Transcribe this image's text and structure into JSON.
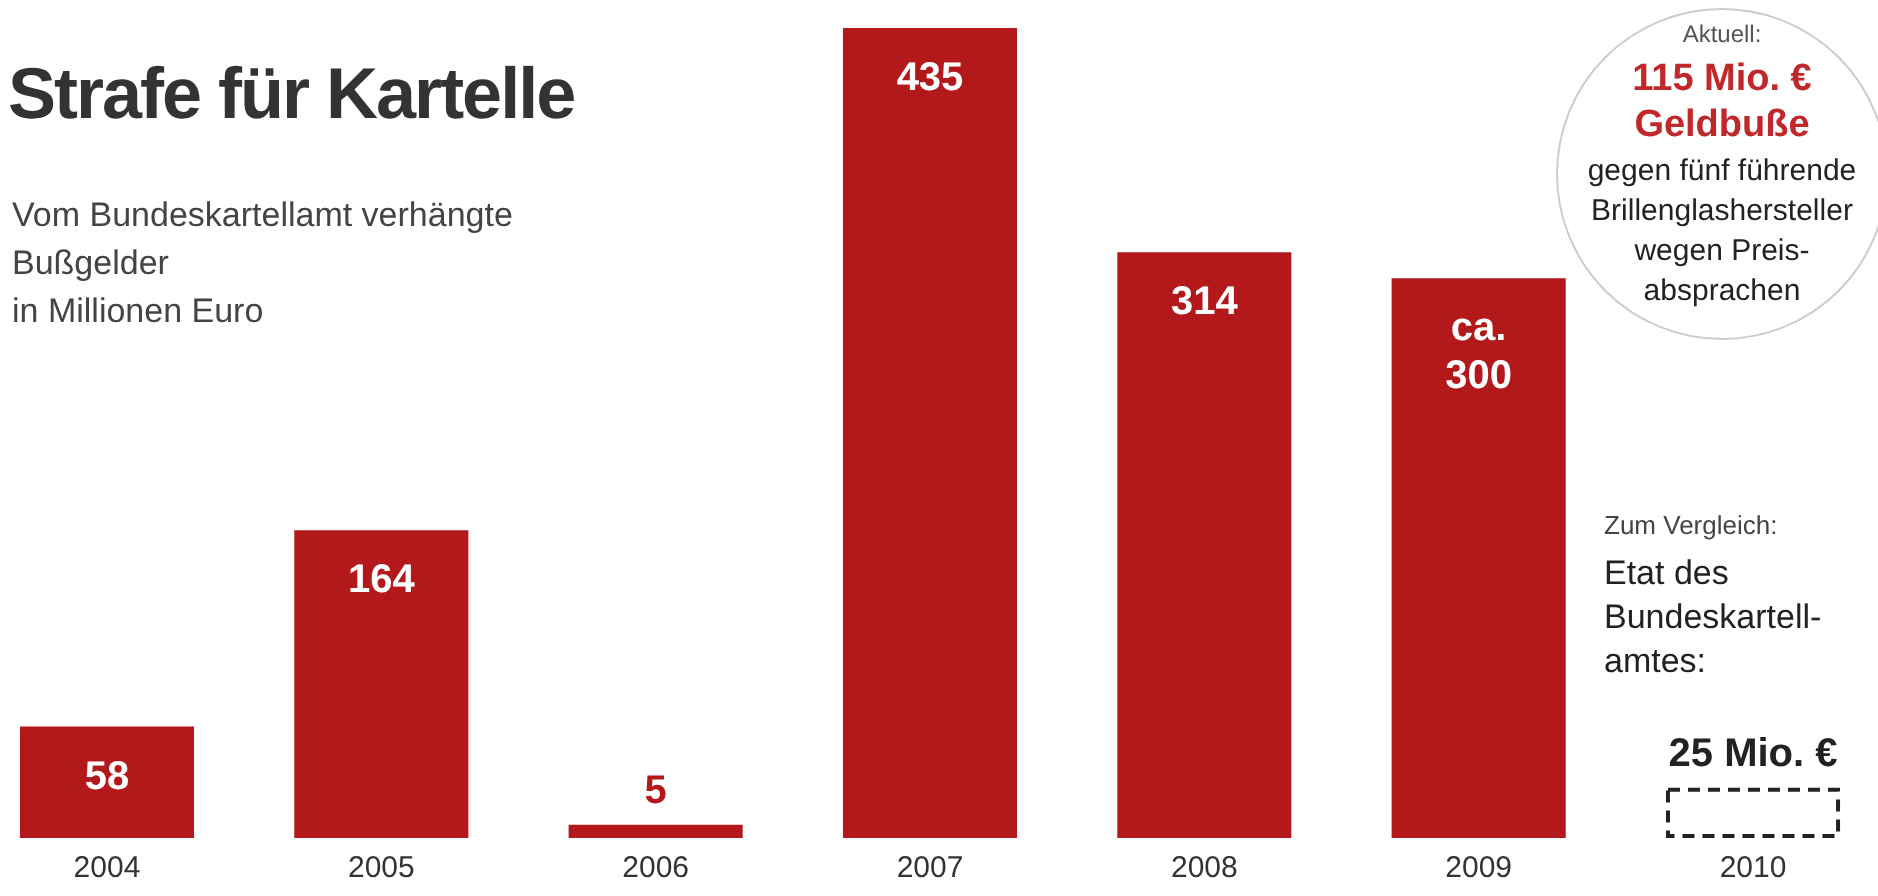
{
  "chart_data": {
    "type": "bar",
    "title": "Strafe für Kartelle",
    "subtitle": "Vom Bundeskartellamt verhängte\nBußgelder\nin Millionen Euro",
    "categories": [
      "2004",
      "2005",
      "2006",
      "2007",
      "2008",
      "2009",
      "2010"
    ],
    "series": [
      {
        "color": "#b3191b",
        "values": [
          58,
          164,
          5,
          435,
          314,
          300,
          null
        ],
        "value_labels": [
          "58",
          "164",
          "5",
          "435",
          "314",
          "ca. 300",
          null
        ]
      },
      {
        "color": "#222222",
        "line_style": "dashed",
        "values": [
          null,
          null,
          null,
          null,
          null,
          null,
          25
        ],
        "value_labels": [
          null,
          null,
          null,
          null,
          null,
          null,
          "25 Mio. €"
        ]
      }
    ],
    "annotations": [
      "Aktuell:",
      "115 Mio. €\nGeldbuße",
      "gegen fünf führende\nBrillenglashersteller\nwegen Preis-\nabsprachen",
      "Zum Vergleich:",
      "Etat des\nBundeskartell-\namtes:"
    ],
    "grid": false
  }
}
